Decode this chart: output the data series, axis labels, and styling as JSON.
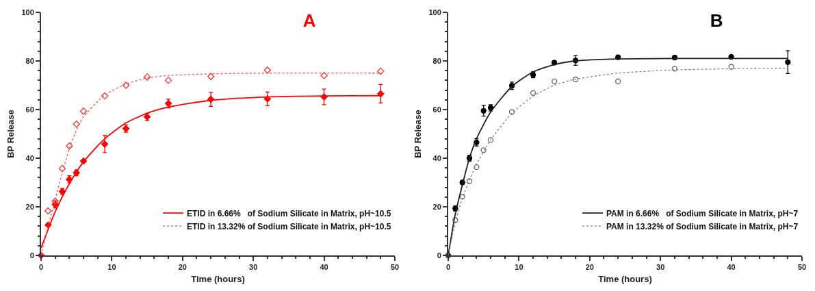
{
  "chart_data": [
    {
      "type": "scatter",
      "title": "A",
      "xlabel": "Time (hours)",
      "ylabel": "BP Release",
      "xlim": [
        0,
        50
      ],
      "xticks": [
        0,
        10,
        20,
        30,
        40,
        50
      ],
      "ylim": [
        0,
        100
      ],
      "yticks": [
        0,
        20,
        40,
        60,
        80,
        100
      ],
      "grid": false,
      "legend": "bottom right",
      "series": [
        {
          "type": "scatter",
          "marker": "diamond",
          "color": "#ff0000",
          "x": [
            0,
            1,
            2,
            3,
            4,
            5,
            6,
            9,
            12,
            15,
            18,
            24,
            32,
            40,
            48
          ],
          "values": [
            0,
            12.5,
            21,
            26.3,
            31.3,
            34,
            38.8,
            45.8,
            52.2,
            57,
            62.5,
            64.2,
            64.4,
            65.2,
            66.5
          ],
          "errors": [
            0,
            0.5,
            1.5,
            1.2,
            1.5,
            1.2,
            0.5,
            3.5,
            1.5,
            1.5,
            1.8,
            2.9,
            2.8,
            3.2,
            3.8
          ]
        },
        {
          "type": "scatter",
          "marker": "diamond-open",
          "color": "#ff3030",
          "x": [
            0,
            1,
            2,
            3,
            4,
            5,
            6,
            9,
            12,
            15,
            18,
            24,
            32,
            40,
            48
          ],
          "values": [
            0,
            18.3,
            22.3,
            35.8,
            45,
            54,
            59.3,
            65.6,
            70,
            73.4,
            72,
            73.6,
            76.2,
            74,
            75.8
          ]
        },
        {
          "type": "line",
          "name": "ETID in 6.66%   of Sodium Silicate in Matrix, pH~10.5",
          "color": "#ff0000",
          "marker": "none",
          "line_style": "solid",
          "x": [
            0,
            2,
            4,
            6,
            9,
            12,
            15,
            18,
            24,
            32,
            40,
            48
          ],
          "values": [
            3,
            18,
            29.5,
            38.5,
            48,
            54.5,
            58.5,
            61,
            63.8,
            65.2,
            65.6,
            65.7
          ]
        },
        {
          "type": "line",
          "name": "ETID in 13.32% of Sodium Silicate in Matrix, pH~10.5",
          "color": "#ff5050",
          "marker": "none",
          "line_style": "dotted",
          "x": [
            0,
            1,
            2,
            3,
            4,
            5,
            6,
            9,
            12,
            15,
            18,
            24,
            32,
            48
          ],
          "values": [
            0,
            12,
            23,
            34,
            44,
            51.5,
            57,
            66,
            70.5,
            73,
            74,
            74.7,
            75,
            75
          ]
        }
      ]
    },
    {
      "type": "scatter",
      "title": "B",
      "xlabel": "Time (hours)",
      "ylabel": "BP Release",
      "xlim": [
        0,
        50
      ],
      "xticks": [
        0,
        10,
        20,
        30,
        40,
        50
      ],
      "ylim": [
        0,
        100
      ],
      "yticks": [
        0,
        20,
        40,
        60,
        80,
        100
      ],
      "grid": false,
      "legend": "bottom right",
      "series": [
        {
          "type": "scatter",
          "marker": "circle",
          "color": "#000000",
          "x": [
            0,
            1,
            2,
            3,
            4,
            5,
            6,
            9,
            12,
            15,
            18,
            24,
            32,
            40,
            48
          ],
          "values": [
            0,
            19.3,
            30,
            40,
            46.5,
            59.5,
            60.7,
            69.8,
            74.3,
            79.3,
            80.2,
            81.5,
            81.4,
            81.7,
            79.5
          ],
          "errors": [
            0,
            1,
            0.7,
            1.2,
            1.5,
            2.2,
            1.3,
            1.5,
            1.2,
            0.8,
            2,
            0.8,
            0.8,
            0.5,
            4.7
          ]
        },
        {
          "type": "scatter",
          "marker": "circle-open",
          "color": "#606060",
          "x": [
            0,
            1,
            2,
            3,
            4,
            5,
            6,
            9,
            12,
            15,
            18,
            24,
            32,
            40
          ],
          "values": [
            0,
            14.5,
            24.2,
            30.5,
            36.3,
            43.3,
            47.5,
            59,
            66.8,
            71.6,
            72.4,
            71.6,
            76.8,
            77.6
          ]
        },
        {
          "type": "line",
          "name": "PAM in 6.66%   of Sodium Silicate in Matrix, pH~7",
          "color": "#202020",
          "marker": "none",
          "line_style": "solid",
          "x": [
            0,
            1,
            3,
            4,
            6,
            9,
            12,
            15,
            18,
            24,
            32,
            48
          ],
          "values": [
            0,
            17,
            40,
            48,
            59,
            69.5,
            75.5,
            78.5,
            80,
            80.8,
            81,
            81
          ]
        },
        {
          "type": "line",
          "name": "PAM in 13.32% of Sodium Silicate in Matrix, pH~7",
          "color": "#808080",
          "marker": "none",
          "line_style": "dotted",
          "x": [
            0,
            1,
            2,
            3,
            4,
            6,
            9,
            12,
            15,
            18,
            24,
            32,
            40,
            48
          ],
          "values": [
            0,
            13.5,
            23.5,
            31,
            37.5,
            47.5,
            58.5,
            65.5,
            70,
            72.5,
            75,
            76.3,
            76.8,
            77
          ]
        }
      ]
    }
  ]
}
